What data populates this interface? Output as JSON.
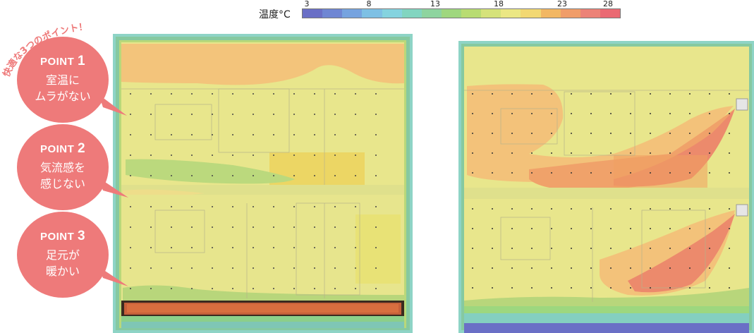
{
  "legend": {
    "label": "温度°C",
    "ticks": [
      "3",
      "8",
      "13",
      "18",
      "23",
      "28"
    ],
    "colors": [
      "#6a6fc6",
      "#6f86d3",
      "#76a3df",
      "#7ec0e4",
      "#85d3df",
      "#82d5c0",
      "#8ed49f",
      "#9fd77e",
      "#b8dc72",
      "#d5e27a",
      "#ebe784",
      "#f2d873",
      "#f2b763",
      "#f09d69",
      "#ec8277",
      "#ea6a73"
    ]
  },
  "catchphrase": "快適な3つのポイント！",
  "points": [
    {
      "head": "POINT",
      "num": "1",
      "line1": "室温に",
      "line2": "ムラがない"
    },
    {
      "head": "POINT",
      "num": "2",
      "line1": "気流感を",
      "line2": "感じない"
    },
    {
      "head": "POINT",
      "num": "3",
      "line1": "足元が",
      "line2": "暖かい"
    }
  ],
  "colors": {
    "bubble": "#ee7a7a",
    "yellow": "#eae88a",
    "orange": "#f3c27a",
    "red": "#ec8a6c",
    "green": "#b9d87a"
  }
}
